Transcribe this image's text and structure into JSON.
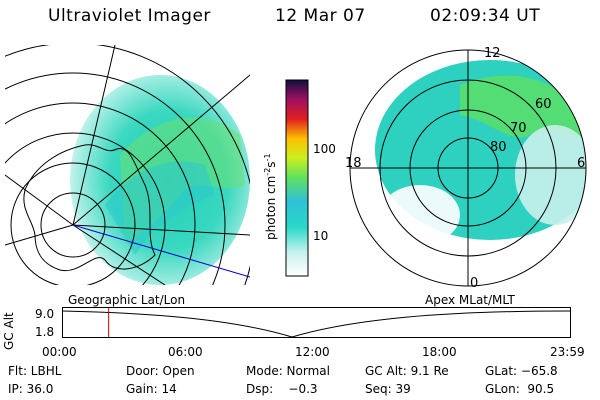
{
  "header": {
    "instrument": "Ultraviolet Imager",
    "date": "12 Mar 07",
    "time": "02:09:34 UT"
  },
  "left_panel": {
    "label": "Geographic Lat/Lon"
  },
  "right_panel": {
    "label": "Apex MLat/MLT",
    "mlt_labels": [
      "12",
      "18",
      "6",
      "0"
    ],
    "lat_labels": [
      "60",
      "70",
      "80"
    ]
  },
  "colorbar": {
    "title": "photon cm",
    "title_sup1": "-2",
    "title_mid": "s",
    "title_sup2": "-1",
    "tick_labels": [
      "100",
      "10"
    ]
  },
  "timeline": {
    "ylabel": "GC Alt",
    "ymax": "9.0",
    "ymin": "1.8",
    "x_ticks": [
      "00:00",
      "06:00",
      "12:00",
      "18:00",
      "23:59"
    ],
    "current_time_fraction": 0.0899
  },
  "info": {
    "row1": {
      "flt": "Flt: LBHL",
      "door": "Door: Open",
      "mode": "Mode: Normal",
      "gc_alt": "GC Alt: 9.1 Re",
      "glat": "GLat: −65.8"
    },
    "row2": {
      "ip": "IP: 36.0",
      "gain": "Gain: 14",
      "dsp": "Dsp:    −0.3",
      "seq": "Seq: 39",
      "glon": "GLon:  90.5"
    }
  },
  "colors": {
    "background": "#ffffff",
    "marker": "#cc0000",
    "terminator": "#0000cc"
  }
}
